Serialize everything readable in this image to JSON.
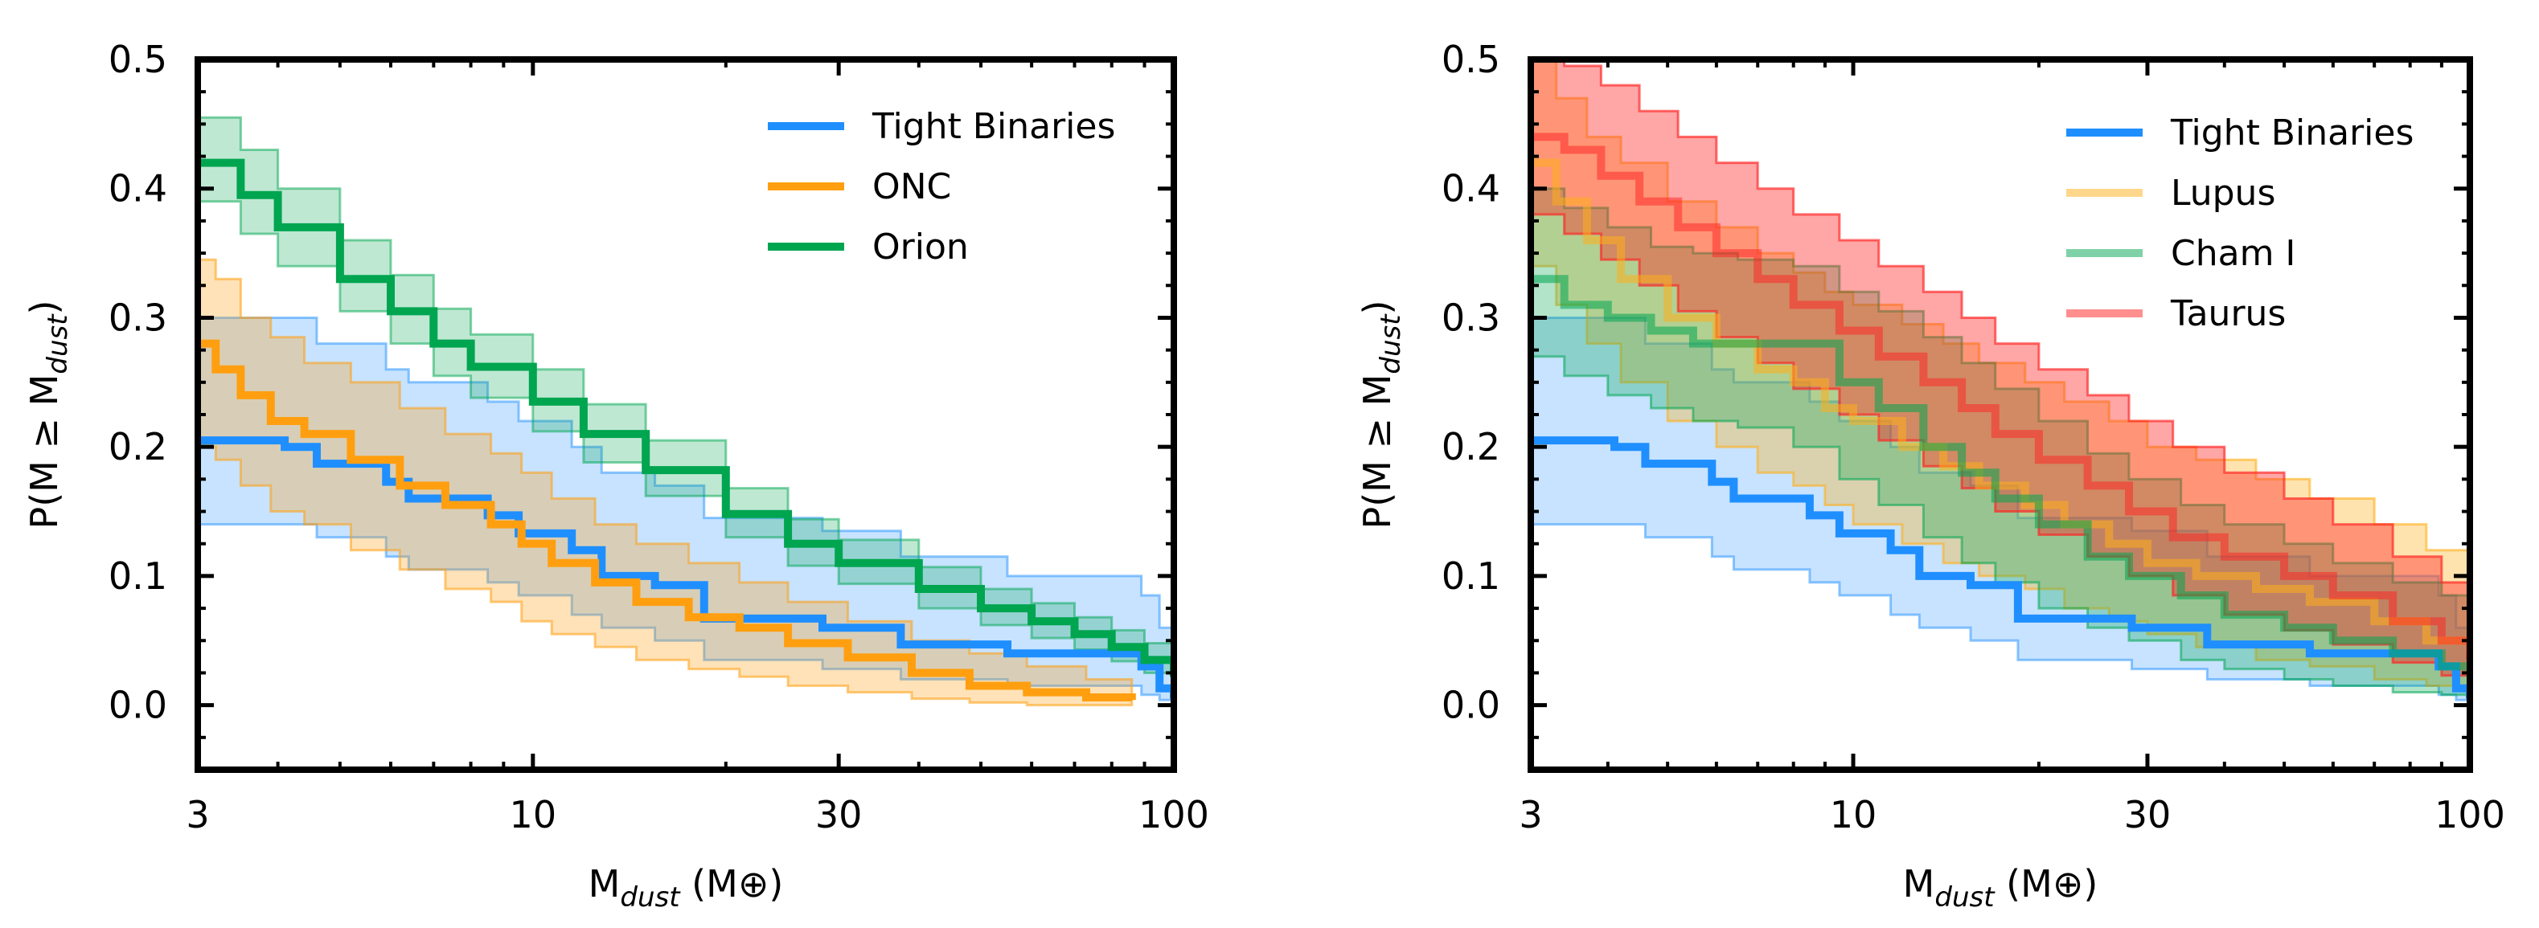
{
  "chart_data": [
    {
      "type": "line",
      "step": true,
      "xscale": "log",
      "xlim": [
        3,
        100
      ],
      "ylim": [
        -0.05,
        0.5
      ],
      "xticks": [
        3,
        10,
        30,
        100
      ],
      "xtick_labels": [
        "3",
        "10",
        "30",
        "100"
      ],
      "yticks": [
        0.0,
        0.1,
        0.2,
        0.3,
        0.4,
        0.5
      ],
      "ytick_labels": [
        "0.0",
        "0.1",
        "0.2",
        "0.3",
        "0.4",
        "0.5"
      ],
      "xlabel": {
        "main": "M",
        "sub": "dust",
        "unit": " (M⊕)"
      },
      "ylabel": {
        "main": "P(M ≥ M",
        "sub": "dust",
        "close": ")"
      },
      "legend_position": "top-right",
      "series": [
        {
          "name": "Tight Binaries",
          "color": "#1f8fff",
          "line_alpha": 1.0,
          "band_alpha": 0.25,
          "x": [
            3,
            4.1,
            4.6,
            5.9,
            6.4,
            8.5,
            9.5,
            11.5,
            12.8,
            15.5,
            18.5,
            28.3,
            37.5,
            55,
            89,
            95,
            100
          ],
          "y": [
            0.205,
            0.2,
            0.187,
            0.173,
            0.16,
            0.147,
            0.133,
            0.12,
            0.1,
            0.093,
            0.067,
            0.06,
            0.047,
            0.04,
            0.03,
            0.013,
            0.005
          ],
          "lower": [
            0.14,
            0.14,
            0.13,
            0.115,
            0.105,
            0.095,
            0.085,
            0.07,
            0.06,
            0.05,
            0.035,
            0.028,
            0.02,
            0.015,
            0.008,
            0.004,
            0.0
          ],
          "upper": [
            0.3,
            0.3,
            0.28,
            0.26,
            0.25,
            0.235,
            0.22,
            0.2,
            0.18,
            0.17,
            0.145,
            0.135,
            0.115,
            0.1,
            0.085,
            0.06,
            0.04
          ]
        },
        {
          "name": "ONC",
          "color": "#ff9f10",
          "line_alpha": 1.0,
          "band_alpha": 0.3,
          "x": [
            3,
            3.2,
            3.5,
            3.9,
            4.4,
            5.2,
            6.2,
            7.3,
            8.6,
            9.6,
            10.7,
            12.5,
            14.5,
            17.5,
            21,
            25,
            31,
            39,
            48,
            59,
            73,
            86
          ],
          "y": [
            0.28,
            0.26,
            0.24,
            0.22,
            0.21,
            0.19,
            0.17,
            0.155,
            0.14,
            0.125,
            0.11,
            0.095,
            0.08,
            0.068,
            0.06,
            0.048,
            0.037,
            0.025,
            0.015,
            0.01,
            0.006,
            0.004
          ],
          "lower": [
            0.2,
            0.19,
            0.17,
            0.15,
            0.14,
            0.12,
            0.105,
            0.09,
            0.08,
            0.065,
            0.055,
            0.045,
            0.035,
            0.028,
            0.022,
            0.015,
            0.01,
            0.005,
            0.002,
            0.0,
            0.0,
            0.0
          ],
          "upper": [
            0.345,
            0.33,
            0.3,
            0.285,
            0.265,
            0.25,
            0.23,
            0.21,
            0.195,
            0.18,
            0.16,
            0.14,
            0.125,
            0.11,
            0.095,
            0.08,
            0.065,
            0.05,
            0.04,
            0.03,
            0.02,
            0.012
          ]
        },
        {
          "name": "Orion",
          "color": "#00a550",
          "line_alpha": 1.0,
          "band_alpha": 0.25,
          "x": [
            3,
            3.5,
            4,
            5,
            6,
            7,
            8,
            10,
            12,
            15,
            20,
            25,
            30,
            40,
            50,
            60,
            70,
            80,
            90,
            100
          ],
          "y": [
            0.42,
            0.395,
            0.37,
            0.33,
            0.305,
            0.28,
            0.262,
            0.235,
            0.21,
            0.182,
            0.148,
            0.125,
            0.11,
            0.09,
            0.075,
            0.065,
            0.055,
            0.045,
            0.035,
            0.022
          ],
          "lower": [
            0.39,
            0.365,
            0.34,
            0.305,
            0.28,
            0.255,
            0.238,
            0.212,
            0.188,
            0.162,
            0.13,
            0.108,
            0.094,
            0.075,
            0.062,
            0.052,
            0.043,
            0.034,
            0.025,
            0.012
          ],
          "upper": [
            0.455,
            0.43,
            0.4,
            0.36,
            0.333,
            0.307,
            0.287,
            0.26,
            0.233,
            0.205,
            0.168,
            0.144,
            0.128,
            0.107,
            0.09,
            0.079,
            0.068,
            0.058,
            0.048,
            0.035
          ]
        }
      ]
    },
    {
      "type": "line",
      "step": true,
      "xscale": "log",
      "xlim": [
        3,
        100
      ],
      "ylim": [
        -0.05,
        0.5
      ],
      "xticks": [
        3,
        10,
        30,
        100
      ],
      "xtick_labels": [
        "3",
        "10",
        "30",
        "100"
      ],
      "yticks": [
        0.0,
        0.1,
        0.2,
        0.3,
        0.4,
        0.5
      ],
      "ytick_labels": [
        "0.0",
        "0.1",
        "0.2",
        "0.3",
        "0.4",
        "0.5"
      ],
      "xlabel": {
        "main": "M",
        "sub": "dust",
        "unit": " (M⊕)"
      },
      "ylabel": {
        "main": "P(M ≥ M",
        "sub": "dust",
        "close": ")"
      },
      "legend_position": "top-right",
      "series": [
        {
          "name": "Tight Binaries",
          "color": "#1f8fff",
          "line_alpha": 1.0,
          "band_alpha": 0.25,
          "x": [
            3,
            4.1,
            4.6,
            5.9,
            6.4,
            8.5,
            9.5,
            11.5,
            12.8,
            15.5,
            18.5,
            28.3,
            37.5,
            55,
            89,
            95,
            100
          ],
          "y": [
            0.205,
            0.2,
            0.187,
            0.173,
            0.16,
            0.147,
            0.133,
            0.12,
            0.1,
            0.093,
            0.067,
            0.06,
            0.047,
            0.04,
            0.03,
            0.013,
            0.005
          ],
          "lower": [
            0.14,
            0.14,
            0.13,
            0.115,
            0.105,
            0.095,
            0.085,
            0.07,
            0.06,
            0.05,
            0.035,
            0.028,
            0.02,
            0.015,
            0.008,
            0.004,
            0.0
          ],
          "upper": [
            0.3,
            0.3,
            0.28,
            0.26,
            0.25,
            0.235,
            0.22,
            0.2,
            0.18,
            0.17,
            0.145,
            0.135,
            0.115,
            0.1,
            0.085,
            0.06,
            0.04
          ]
        },
        {
          "name": "Lupus",
          "color": "#ffaf1a",
          "line_alpha": 0.55,
          "band_alpha": 0.35,
          "x": [
            3,
            3.3,
            3.7,
            4.2,
            5,
            6,
            7,
            8,
            9,
            10,
            12,
            14,
            16,
            19,
            22,
            26,
            30,
            36,
            45,
            55,
            70,
            85,
            100
          ],
          "y": [
            0.42,
            0.39,
            0.36,
            0.33,
            0.3,
            0.28,
            0.26,
            0.25,
            0.23,
            0.22,
            0.2,
            0.185,
            0.17,
            0.155,
            0.14,
            0.125,
            0.11,
            0.1,
            0.09,
            0.08,
            0.065,
            0.05,
            0.04
          ],
          "lower": [
            0.34,
            0.31,
            0.28,
            0.25,
            0.22,
            0.2,
            0.18,
            0.17,
            0.155,
            0.14,
            0.125,
            0.11,
            0.1,
            0.09,
            0.075,
            0.065,
            0.055,
            0.045,
            0.035,
            0.03,
            0.02,
            0.015,
            0.01
          ],
          "upper": [
            0.5,
            0.47,
            0.44,
            0.42,
            0.39,
            0.37,
            0.35,
            0.335,
            0.32,
            0.31,
            0.295,
            0.28,
            0.265,
            0.25,
            0.235,
            0.22,
            0.2,
            0.19,
            0.175,
            0.16,
            0.14,
            0.12,
            0.11
          ]
        },
        {
          "name": "Cham I",
          "color": "#00a550",
          "line_alpha": 0.55,
          "band_alpha": 0.3,
          "x": [
            3,
            3.4,
            4,
            4.7,
            5.5,
            6.5,
            8,
            9.5,
            11,
            13,
            15,
            17,
            20,
            24,
            28,
            34,
            40,
            50,
            60,
            75,
            90,
            100
          ],
          "y": [
            0.33,
            0.31,
            0.3,
            0.29,
            0.28,
            0.28,
            0.28,
            0.25,
            0.23,
            0.2,
            0.18,
            0.16,
            0.14,
            0.115,
            0.1,
            0.085,
            0.07,
            0.06,
            0.05,
            0.04,
            0.03,
            0.022
          ],
          "lower": [
            0.27,
            0.255,
            0.24,
            0.23,
            0.22,
            0.215,
            0.2,
            0.175,
            0.155,
            0.13,
            0.11,
            0.095,
            0.075,
            0.06,
            0.05,
            0.035,
            0.028,
            0.02,
            0.015,
            0.01,
            0.008,
            0.005
          ],
          "upper": [
            0.4,
            0.385,
            0.37,
            0.355,
            0.35,
            0.345,
            0.34,
            0.32,
            0.305,
            0.285,
            0.265,
            0.245,
            0.22,
            0.195,
            0.175,
            0.155,
            0.14,
            0.125,
            0.11,
            0.095,
            0.085,
            0.075
          ]
        },
        {
          "name": "Taurus",
          "color": "#ff2020",
          "line_alpha": 0.5,
          "band_alpha": 0.4,
          "x": [
            3,
            3.4,
            3.9,
            4.5,
            5.2,
            6,
            7,
            8,
            9.5,
            11,
            13,
            15,
            17,
            20,
            24,
            28,
            33,
            40,
            50,
            60,
            75,
            90,
            100
          ],
          "y": [
            0.44,
            0.43,
            0.41,
            0.39,
            0.37,
            0.35,
            0.33,
            0.31,
            0.29,
            0.27,
            0.25,
            0.23,
            0.21,
            0.19,
            0.17,
            0.15,
            0.13,
            0.115,
            0.1,
            0.085,
            0.065,
            0.05,
            0.035
          ],
          "lower": [
            0.38,
            0.365,
            0.345,
            0.325,
            0.305,
            0.285,
            0.265,
            0.245,
            0.225,
            0.205,
            0.185,
            0.168,
            0.15,
            0.132,
            0.115,
            0.1,
            0.085,
            0.07,
            0.058,
            0.047,
            0.033,
            0.023,
            0.015
          ],
          "upper": [
            0.5,
            0.495,
            0.48,
            0.46,
            0.44,
            0.42,
            0.4,
            0.38,
            0.36,
            0.34,
            0.32,
            0.3,
            0.28,
            0.26,
            0.24,
            0.22,
            0.2,
            0.18,
            0.16,
            0.14,
            0.115,
            0.095,
            0.08
          ]
        }
      ]
    }
  ]
}
